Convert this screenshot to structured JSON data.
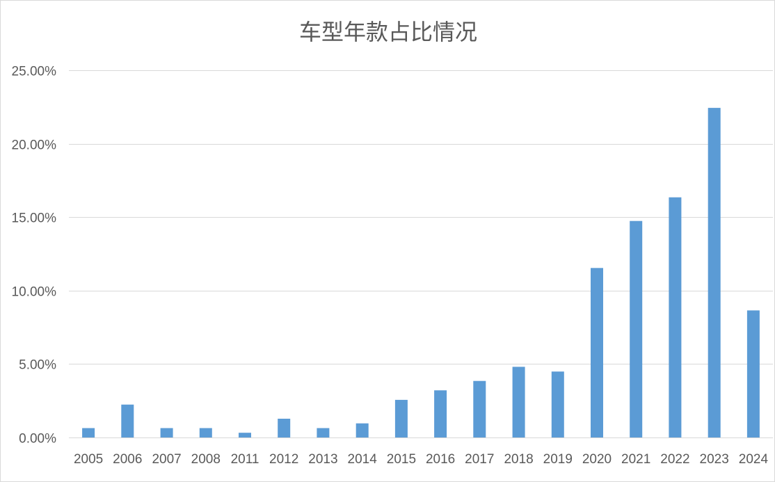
{
  "chart_data": {
    "type": "bar",
    "title": "车型年款占比情况",
    "xlabel": "",
    "ylabel": "",
    "categories": [
      "2005",
      "2006",
      "2007",
      "2008",
      "2011",
      "2012",
      "2013",
      "2014",
      "2015",
      "2016",
      "2017",
      "2018",
      "2019",
      "2020",
      "2021",
      "2022",
      "2023",
      "2024"
    ],
    "values": [
      0.0064,
      0.0224,
      0.0064,
      0.0064,
      0.0032,
      0.0128,
      0.0064,
      0.0096,
      0.0256,
      0.0321,
      0.0385,
      0.0481,
      0.0449,
      0.1154,
      0.1474,
      0.1635,
      0.2244,
      0.0865
    ],
    "ylim": [
      0,
      0.25
    ],
    "yticks": [
      0,
      0.05,
      0.1,
      0.15,
      0.2,
      0.25
    ],
    "ytick_labels": [
      "0.00%",
      "5.00%",
      "10.00%",
      "15.00%",
      "20.00%",
      "25.00%"
    ],
    "grid": true,
    "legend": "none",
    "colors": {
      "bar": "#5b9bd5",
      "grid": "#d9d9d9",
      "text": "#595959"
    }
  }
}
